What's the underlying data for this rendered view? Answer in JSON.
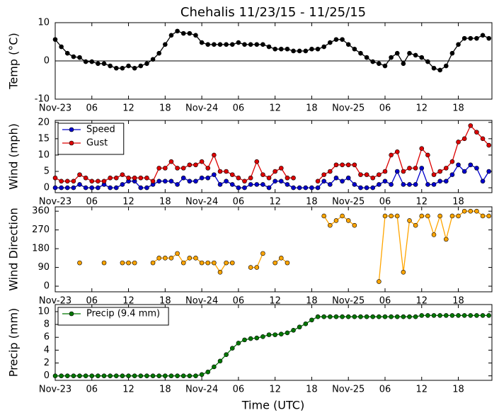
{
  "title": "Chehalis 11/23/15 - 11/25/15",
  "xlabel": "Time (UTC)",
  "x": [
    0,
    1,
    2,
    3,
    4,
    5,
    6,
    7,
    8,
    9,
    10,
    11,
    12,
    13,
    14,
    15,
    16,
    17,
    18,
    19,
    20,
    21,
    22,
    23,
    24,
    25,
    26,
    27,
    28,
    29,
    30,
    31,
    32,
    33,
    34,
    35,
    36,
    37,
    38,
    39,
    40,
    41,
    42,
    43,
    44,
    45,
    46,
    47,
    48,
    49,
    50,
    51,
    52,
    53,
    54,
    55,
    56,
    57,
    58,
    59,
    60,
    61,
    62,
    63,
    64,
    65,
    66,
    67,
    68,
    69,
    70,
    71
  ],
  "xlim": [
    0,
    71.5
  ],
  "xticks": [
    {
      "value": 0,
      "label": "Nov-23"
    },
    {
      "value": 6,
      "label": "06"
    },
    {
      "value": 12,
      "label": "12"
    },
    {
      "value": 18,
      "label": "18"
    },
    {
      "value": 24,
      "label": "Nov-24"
    },
    {
      "value": 30,
      "label": "06"
    },
    {
      "value": 36,
      "label": "12"
    },
    {
      "value": 42,
      "label": "18"
    },
    {
      "value": 48,
      "label": "Nov-25"
    },
    {
      "value": 54,
      "label": "06"
    },
    {
      "value": 60,
      "label": "12"
    },
    {
      "value": 66,
      "label": "18"
    }
  ],
  "chart_data": [
    {
      "type": "line",
      "ylabel": "Temp (°C)",
      "ylim": [
        -10,
        10
      ],
      "yticks": [
        -10,
        0,
        10
      ],
      "zero_line": true,
      "series": [
        {
          "color": "#000000",
          "values": [
            5.6,
            3.7,
            2.0,
            1.1,
            0.9,
            -0.2,
            -0.2,
            -0.7,
            -0.7,
            -1.3,
            -1.9,
            -1.9,
            -1.3,
            -1.9,
            -1.3,
            -0.7,
            0.4,
            2.0,
            4.3,
            6.7,
            7.8,
            7.2,
            7.2,
            6.7,
            4.8,
            4.3,
            4.3,
            4.3,
            4.3,
            4.3,
            4.8,
            4.3,
            4.3,
            4.3,
            4.3,
            3.7,
            3.1,
            3.1,
            3.1,
            2.6,
            2.6,
            2.6,
            3.1,
            3.1,
            3.7,
            4.8,
            5.6,
            5.6,
            4.3,
            3.1,
            2.0,
            0.9,
            -0.2,
            -0.7,
            -1.3,
            0.9,
            2.0,
            -0.7,
            2.0,
            1.5,
            0.9,
            -0.2,
            -1.9,
            -2.4,
            -1.3,
            2.0,
            4.3,
            5.9,
            5.9,
            5.9,
            6.7,
            5.9
          ]
        }
      ]
    },
    {
      "type": "line",
      "ylabel": "Wind (mph)",
      "ylim": [
        -1.5,
        20.6
      ],
      "yticks": [
        0,
        5,
        10,
        15,
        20
      ],
      "legend": "upper left",
      "series": [
        {
          "name": "Speed",
          "color": "#0000cc",
          "values": [
            0,
            0,
            0,
            0,
            1,
            0,
            0,
            0,
            1,
            0,
            0,
            1,
            2,
            2,
            0,
            0,
            1,
            2,
            2,
            2,
            1,
            3,
            2,
            2,
            3,
            3,
            4,
            1,
            2,
            1,
            0,
            0,
            1,
            1,
            1,
            0,
            2,
            2,
            1,
            0,
            0,
            0,
            0,
            0,
            2,
            1,
            3,
            2,
            3,
            1,
            0,
            0,
            0,
            1,
            2,
            1,
            5,
            1,
            1,
            1,
            6,
            1,
            1,
            2,
            2,
            4,
            7,
            5,
            7,
            6,
            2,
            5
          ]
        },
        {
          "name": "Gust",
          "color": "#dd0000",
          "values": [
            3,
            2,
            2,
            2,
            4,
            3,
            2,
            2,
            2,
            3,
            3,
            4,
            3,
            3,
            3,
            3,
            2,
            6,
            6,
            8,
            6,
            6,
            7,
            7,
            8,
            6,
            10,
            5,
            5,
            4,
            3,
            2,
            3,
            8,
            4,
            3,
            5,
            6,
            3,
            3,
            null,
            null,
            null,
            2,
            4,
            5,
            7,
            7,
            7,
            7,
            4,
            4,
            3,
            4,
            5,
            10,
            11,
            5,
            6,
            6,
            12,
            10,
            4,
            5,
            6,
            8,
            14,
            15,
            19,
            17,
            15,
            13
          ]
        }
      ]
    },
    {
      "type": "line",
      "ylabel": "Wind Direction",
      "ylim": [
        -27,
        381
      ],
      "yticks": [
        0,
        90,
        180,
        270,
        360
      ],
      "series": [
        {
          "color": "#ffa500",
          "values": [
            null,
            null,
            null,
            null,
            112,
            null,
            null,
            null,
            112,
            null,
            null,
            112,
            112,
            112,
            null,
            null,
            112,
            135,
            135,
            135,
            157,
            112,
            135,
            135,
            112,
            112,
            112,
            67,
            112,
            112,
            null,
            null,
            90,
            90,
            157,
            null,
            112,
            135,
            112,
            null,
            null,
            null,
            null,
            null,
            337,
            292,
            315,
            337,
            315,
            292,
            null,
            null,
            null,
            22,
            337,
            337,
            337,
            67,
            315,
            292,
            337,
            337,
            247,
            337,
            225,
            337,
            337,
            360,
            360,
            360,
            337,
            337
          ]
        }
      ]
    },
    {
      "type": "line",
      "ylabel": "Precip (mm)",
      "ylim": [
        -0.7,
        11.1
      ],
      "yticks": [
        0,
        2,
        4,
        6,
        8,
        10
      ],
      "legend": "upper left",
      "series": [
        {
          "name": "Precip (9.4 mm)",
          "color": "#007700",
          "values": [
            0,
            0,
            0,
            0,
            0,
            0,
            0,
            0,
            0,
            0,
            0,
            0,
            0,
            0,
            0,
            0,
            0,
            0,
            0,
            0,
            0,
            0,
            0,
            0,
            0.2,
            0.6,
            1.4,
            2.3,
            3.3,
            4.3,
            5.1,
            5.6,
            5.8,
            5.9,
            6.1,
            6.4,
            6.4,
            6.5,
            6.7,
            7.1,
            7.6,
            8.1,
            8.7,
            9.2,
            9.2,
            9.2,
            9.2,
            9.2,
            9.2,
            9.2,
            9.2,
            9.2,
            9.2,
            9.2,
            9.2,
            9.2,
            9.2,
            9.2,
            9.2,
            9.2,
            9.4,
            9.4,
            9.4,
            9.4,
            9.4,
            9.4,
            9.4,
            9.4,
            9.4,
            9.4,
            9.4,
            9.4
          ]
        }
      ]
    }
  ]
}
